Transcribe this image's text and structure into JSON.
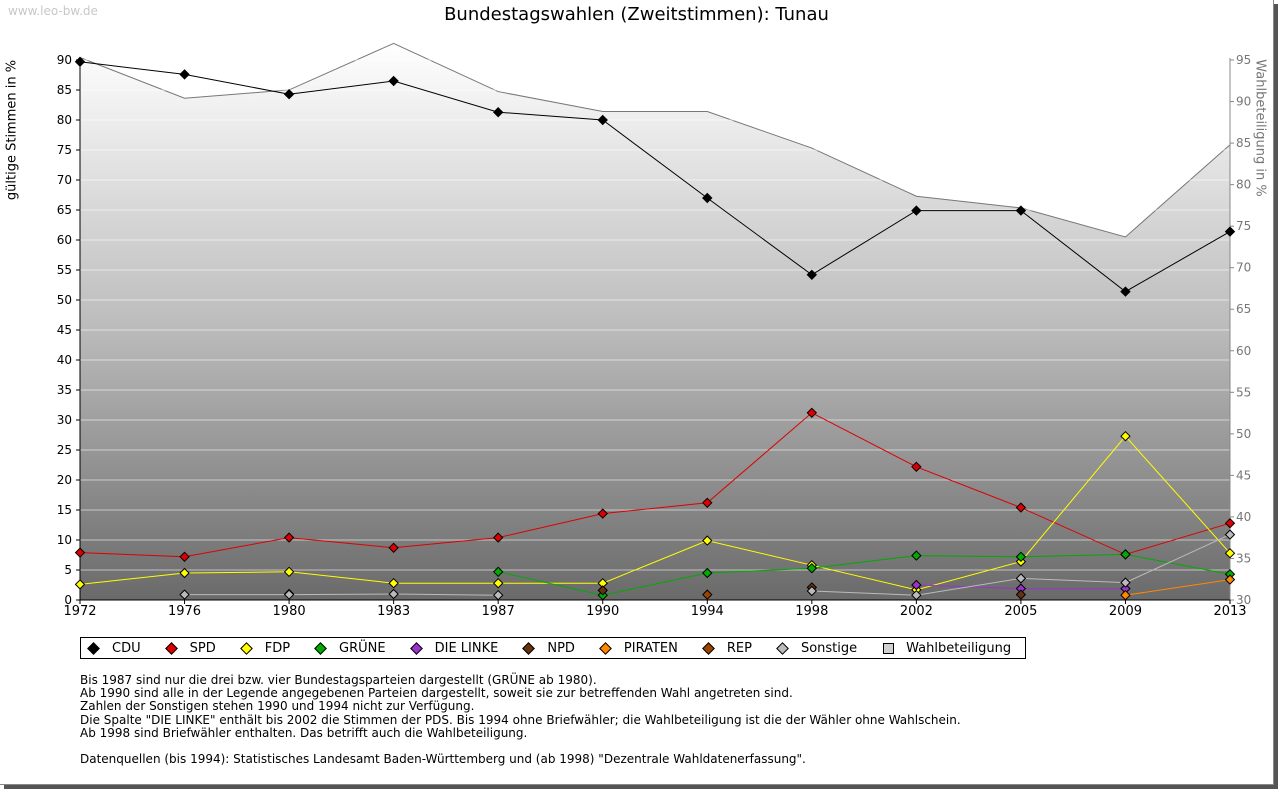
{
  "watermark": "www.leo-bw.de",
  "notes": [
    "Bis 1987 sind nur die drei bzw. vier Bundestagsparteien dargestellt (GRÜNE ab 1980).",
    "Ab 1990 sind alle in der Legende angegebenen Parteien dargestellt, soweit sie zur betreffenden Wahl angetreten sind.",
    "Zahlen der Sonstigen stehen 1990 und 1994 nicht zur Verfügung.",
    "Die Spalte \"DIE LINKE\" enthält bis 2002 die Stimmen der PDS. Bis 1994 ohne Briefwähler; die Wahlbeteiligung ist die der Wähler ohne Wahlschein.",
    "Ab 1998 sind Briefwähler enthalten. Das betrifft auch die Wahlbeteiligung."
  ],
  "sources": "Datenquellen (bis 1994): Statistisches Landesamt Baden-Württemberg und (ab 1998) \"Dezentrale Wahldatenerfassung\".",
  "chart_data": {
    "type": "line",
    "title": "Bundestagswahlen (Zweitstimmen): Tunau",
    "ylabel": "gültige Stimmen in %",
    "ylabel_right": "Wahlbeteiligung in %",
    "ylim": [
      0,
      90
    ],
    "ylim_right": [
      30,
      95
    ],
    "yticks": [
      0,
      5,
      10,
      15,
      20,
      25,
      30,
      35,
      40,
      45,
      50,
      55,
      60,
      65,
      70,
      75,
      80,
      85,
      90
    ],
    "yticks_right": [
      30,
      35,
      40,
      45,
      50,
      55,
      60,
      65,
      70,
      75,
      80,
      85,
      90,
      95
    ],
    "categories": [
      "1972",
      "1976",
      "1980",
      "1983",
      "1987",
      "1990",
      "1994",
      "1998",
      "2002",
      "2005",
      "2009",
      "2013"
    ],
    "series": [
      {
        "name": "CDU",
        "color": "#000000",
        "values": [
          89.7,
          87.6,
          84.3,
          86.5,
          81.3,
          80.0,
          67.0,
          54.2,
          64.9,
          64.9,
          51.4,
          61.4
        ]
      },
      {
        "name": "SPD",
        "color": "#dd0000",
        "values": [
          7.9,
          7.2,
          10.4,
          8.7,
          10.4,
          14.4,
          16.2,
          31.2,
          22.2,
          15.4,
          7.6,
          12.8
        ]
      },
      {
        "name": "FDP",
        "color": "#ffff00",
        "values": [
          2.6,
          4.5,
          4.7,
          2.8,
          2.8,
          2.8,
          9.9,
          5.8,
          1.7,
          6.4,
          27.3,
          7.8
        ]
      },
      {
        "name": "GRÜNE",
        "color": "#00aa00",
        "values": [
          null,
          null,
          1.0,
          null,
          4.7,
          0.8,
          4.5,
          5.3,
          7.4,
          7.2,
          7.6,
          4.3
        ]
      },
      {
        "name": "DIE LINKE",
        "color": "#9933cc",
        "values": [
          null,
          null,
          null,
          null,
          null,
          null,
          null,
          null,
          2.5,
          1.9,
          1.9,
          null
        ]
      },
      {
        "name": "NPD",
        "color": "#663311",
        "values": [
          null,
          null,
          null,
          null,
          null,
          1.6,
          null,
          2.1,
          null,
          0.9,
          null,
          null
        ]
      },
      {
        "name": "PIRATEN",
        "color": "#ff8800",
        "values": [
          null,
          null,
          null,
          null,
          null,
          null,
          null,
          null,
          null,
          null,
          0.8,
          3.4
        ]
      },
      {
        "name": "REP",
        "color": "#994400",
        "values": [
          null,
          null,
          null,
          null,
          null,
          null,
          0.9,
          null,
          null,
          null,
          null,
          null
        ]
      },
      {
        "name": "Sonstige",
        "color": "#bbbbbb",
        "values": [
          null,
          0.9,
          0.9,
          1.0,
          0.8,
          null,
          null,
          1.5,
          0.8,
          3.6,
          2.9,
          10.9
        ]
      }
    ],
    "turnout": {
      "name": "Wahlbeteiligung",
      "values": [
        95.3,
        90.4,
        91.4,
        97.0,
        91.2,
        88.8,
        88.8,
        84.4,
        78.6,
        77.2,
        73.7,
        84.8
      ]
    },
    "legend": [
      "CDU",
      "SPD",
      "FDP",
      "GRÜNE",
      "DIE LINKE",
      "NPD",
      "PIRATEN",
      "REP",
      "Sonstige",
      "Wahlbeteiligung"
    ],
    "legend_position": "bottom"
  }
}
